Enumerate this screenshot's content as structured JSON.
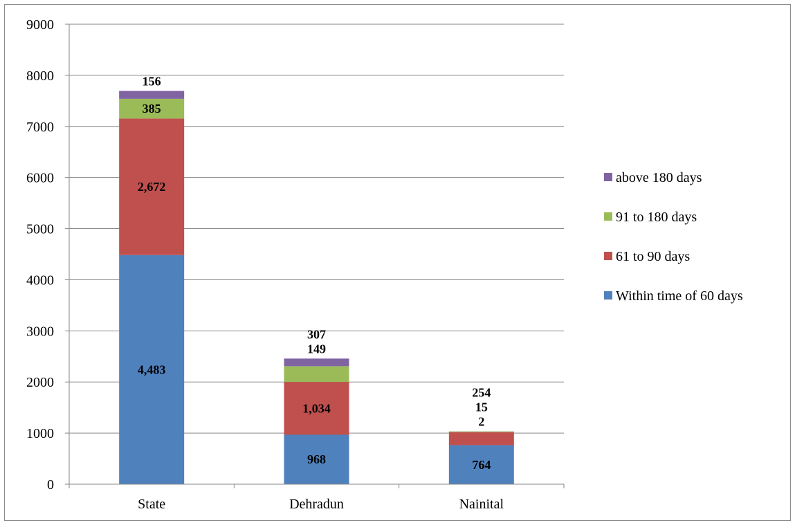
{
  "chart_data": {
    "type": "bar",
    "stacked": true,
    "categories": [
      "State",
      "Dehradun",
      "Nainital"
    ],
    "series": [
      {
        "name": "Within time of 60 days",
        "color": "#4f81bd",
        "values": [
          4483,
          968,
          764
        ],
        "labels": [
          "4,483",
          "968",
          "764"
        ]
      },
      {
        "name": "61 to 90 days",
        "color": "#c0504d",
        "values": [
          2672,
          1034,
          254
        ],
        "labels": [
          "2,672",
          "1,034",
          "254"
        ]
      },
      {
        "name": "91 to 180 days",
        "color": "#9bbb59",
        "values": [
          385,
          307,
          15
        ],
        "labels": [
          "385",
          "307",
          "15"
        ]
      },
      {
        "name": "above 180 days",
        "color": "#8064a2",
        "values": [
          156,
          149,
          2
        ],
        "labels": [
          "156",
          "149",
          "2"
        ]
      }
    ],
    "ylim": [
      0,
      9000
    ],
    "yticks": [
      "0",
      "1000",
      "2000",
      "3000",
      "4000",
      "5000",
      "6000",
      "7000",
      "8000",
      "9000"
    ],
    "grid": true,
    "legend_position": "right"
  }
}
